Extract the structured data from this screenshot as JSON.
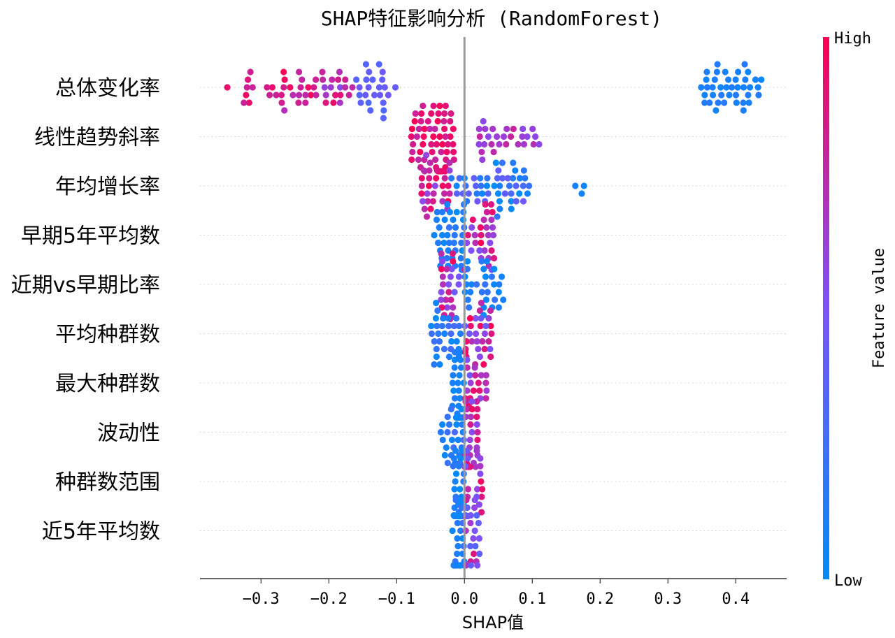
{
  "chart_data": {
    "type": "scatter",
    "subtype": "shap-beeswarm",
    "title": "SHAP特征影响分析 (RandomForest)",
    "xlabel": "SHAP值",
    "xlim": [
      -0.39,
      0.475
    ],
    "xticks": [
      -0.3,
      -0.2,
      -0.1,
      0.0,
      0.1,
      0.2,
      0.3,
      0.4
    ],
    "xtick_labels": [
      "−0.3",
      "−0.2",
      "−0.1",
      "0.0",
      "0.1",
      "0.2",
      "0.3",
      "0.4"
    ],
    "colorbar": {
      "label": "Feature value",
      "high_label": "High",
      "low_label": "Low",
      "colors": [
        "#008bfb",
        "#7c52ff",
        "#ff0052"
      ]
    },
    "zero_line": true,
    "grid": false,
    "features": [
      {
        "name": "总体变化率",
        "groups": [
          {
            "x_range": [
              -0.36,
              -0.3
            ],
            "value_range": [
              0.75,
              0.95
            ],
            "n": 8
          },
          {
            "x_range": [
              -0.3,
              -0.22
            ],
            "value_range": [
              0.7,
              1.0
            ],
            "n": 22
          },
          {
            "x_range": [
              -0.22,
              -0.165
            ],
            "value_range": [
              0.55,
              0.95
            ],
            "n": 20
          },
          {
            "x_range": [
              -0.16,
              -0.1
            ],
            "value_range": [
              0.3,
              0.45
            ],
            "n": 24
          },
          {
            "x_range": [
              0.345,
              0.44
            ],
            "value_range": [
              0.05,
              0.15
            ],
            "n": 40
          }
        ]
      },
      {
        "name": "线性趋势斜率",
        "groups": [
          {
            "x_range": [
              -0.08,
              -0.015
            ],
            "value_range": [
              0.75,
              1.0
            ],
            "n": 60
          },
          {
            "x_range": [
              0.02,
              0.12
            ],
            "value_range": [
              0.55,
              0.8
            ],
            "n": 28
          }
        ]
      },
      {
        "name": "年均增长率",
        "groups": [
          {
            "x_range": [
              -0.07,
              -0.02
            ],
            "value_range": [
              0.55,
              1.0
            ],
            "n": 30
          },
          {
            "x_range": [
              -0.02,
              0.1
            ],
            "value_range": [
              0.0,
              0.45
            ],
            "n": 50
          },
          {
            "x_range": [
              0.155,
              0.185
            ],
            "value_range": [
              0.0,
              0.15
            ],
            "n": 3
          }
        ]
      },
      {
        "name": "早期5年平均数",
        "groups": [
          {
            "x_range": [
              -0.045,
              0.0
            ],
            "value_range": [
              0.0,
              0.2
            ],
            "n": 40
          },
          {
            "x_range": [
              0.0,
              0.045
            ],
            "value_range": [
              0.5,
              1.0
            ],
            "n": 30
          }
        ]
      },
      {
        "name": "近期vs早期比率",
        "groups": [
          {
            "x_range": [
              -0.035,
              -0.005
            ],
            "value_range": [
              0.4,
              1.0
            ],
            "n": 25
          },
          {
            "x_range": [
              0.0,
              0.06
            ],
            "value_range": [
              0.0,
              0.25
            ],
            "n": 30
          }
        ]
      },
      {
        "name": "平均种群数",
        "groups": [
          {
            "x_range": [
              -0.05,
              -0.005
            ],
            "value_range": [
              0.0,
              0.3
            ],
            "n": 30
          },
          {
            "x_range": [
              0.0,
              0.04
            ],
            "value_range": [
              0.4,
              1.0
            ],
            "n": 30
          }
        ]
      },
      {
        "name": "最大种群数",
        "groups": [
          {
            "x_range": [
              -0.018,
              0.0
            ],
            "value_range": [
              0.0,
              0.15
            ],
            "n": 35
          },
          {
            "x_range": [
              0.0,
              0.035
            ],
            "value_range": [
              0.45,
              1.0
            ],
            "n": 20
          }
        ]
      },
      {
        "name": "波动性",
        "groups": [
          {
            "x_range": [
              -0.035,
              0.0
            ],
            "value_range": [
              0.0,
              0.3
            ],
            "n": 25
          },
          {
            "x_range": [
              0.0,
              0.02
            ],
            "value_range": [
              0.5,
              1.0
            ],
            "n": 30
          }
        ]
      },
      {
        "name": "种群数范围",
        "groups": [
          {
            "x_range": [
              -0.018,
              0.0
            ],
            "value_range": [
              0.0,
              0.2
            ],
            "n": 30
          },
          {
            "x_range": [
              0.0,
              0.028
            ],
            "value_range": [
              0.45,
              1.0
            ],
            "n": 22
          }
        ]
      },
      {
        "name": "近5年平均数",
        "groups": [
          {
            "x_range": [
              -0.018,
              0.0
            ],
            "value_range": [
              0.0,
              0.25
            ],
            "n": 30
          },
          {
            "x_range": [
              0.0,
              0.022
            ],
            "value_range": [
              0.3,
              0.9
            ],
            "n": 22
          }
        ]
      }
    ]
  }
}
